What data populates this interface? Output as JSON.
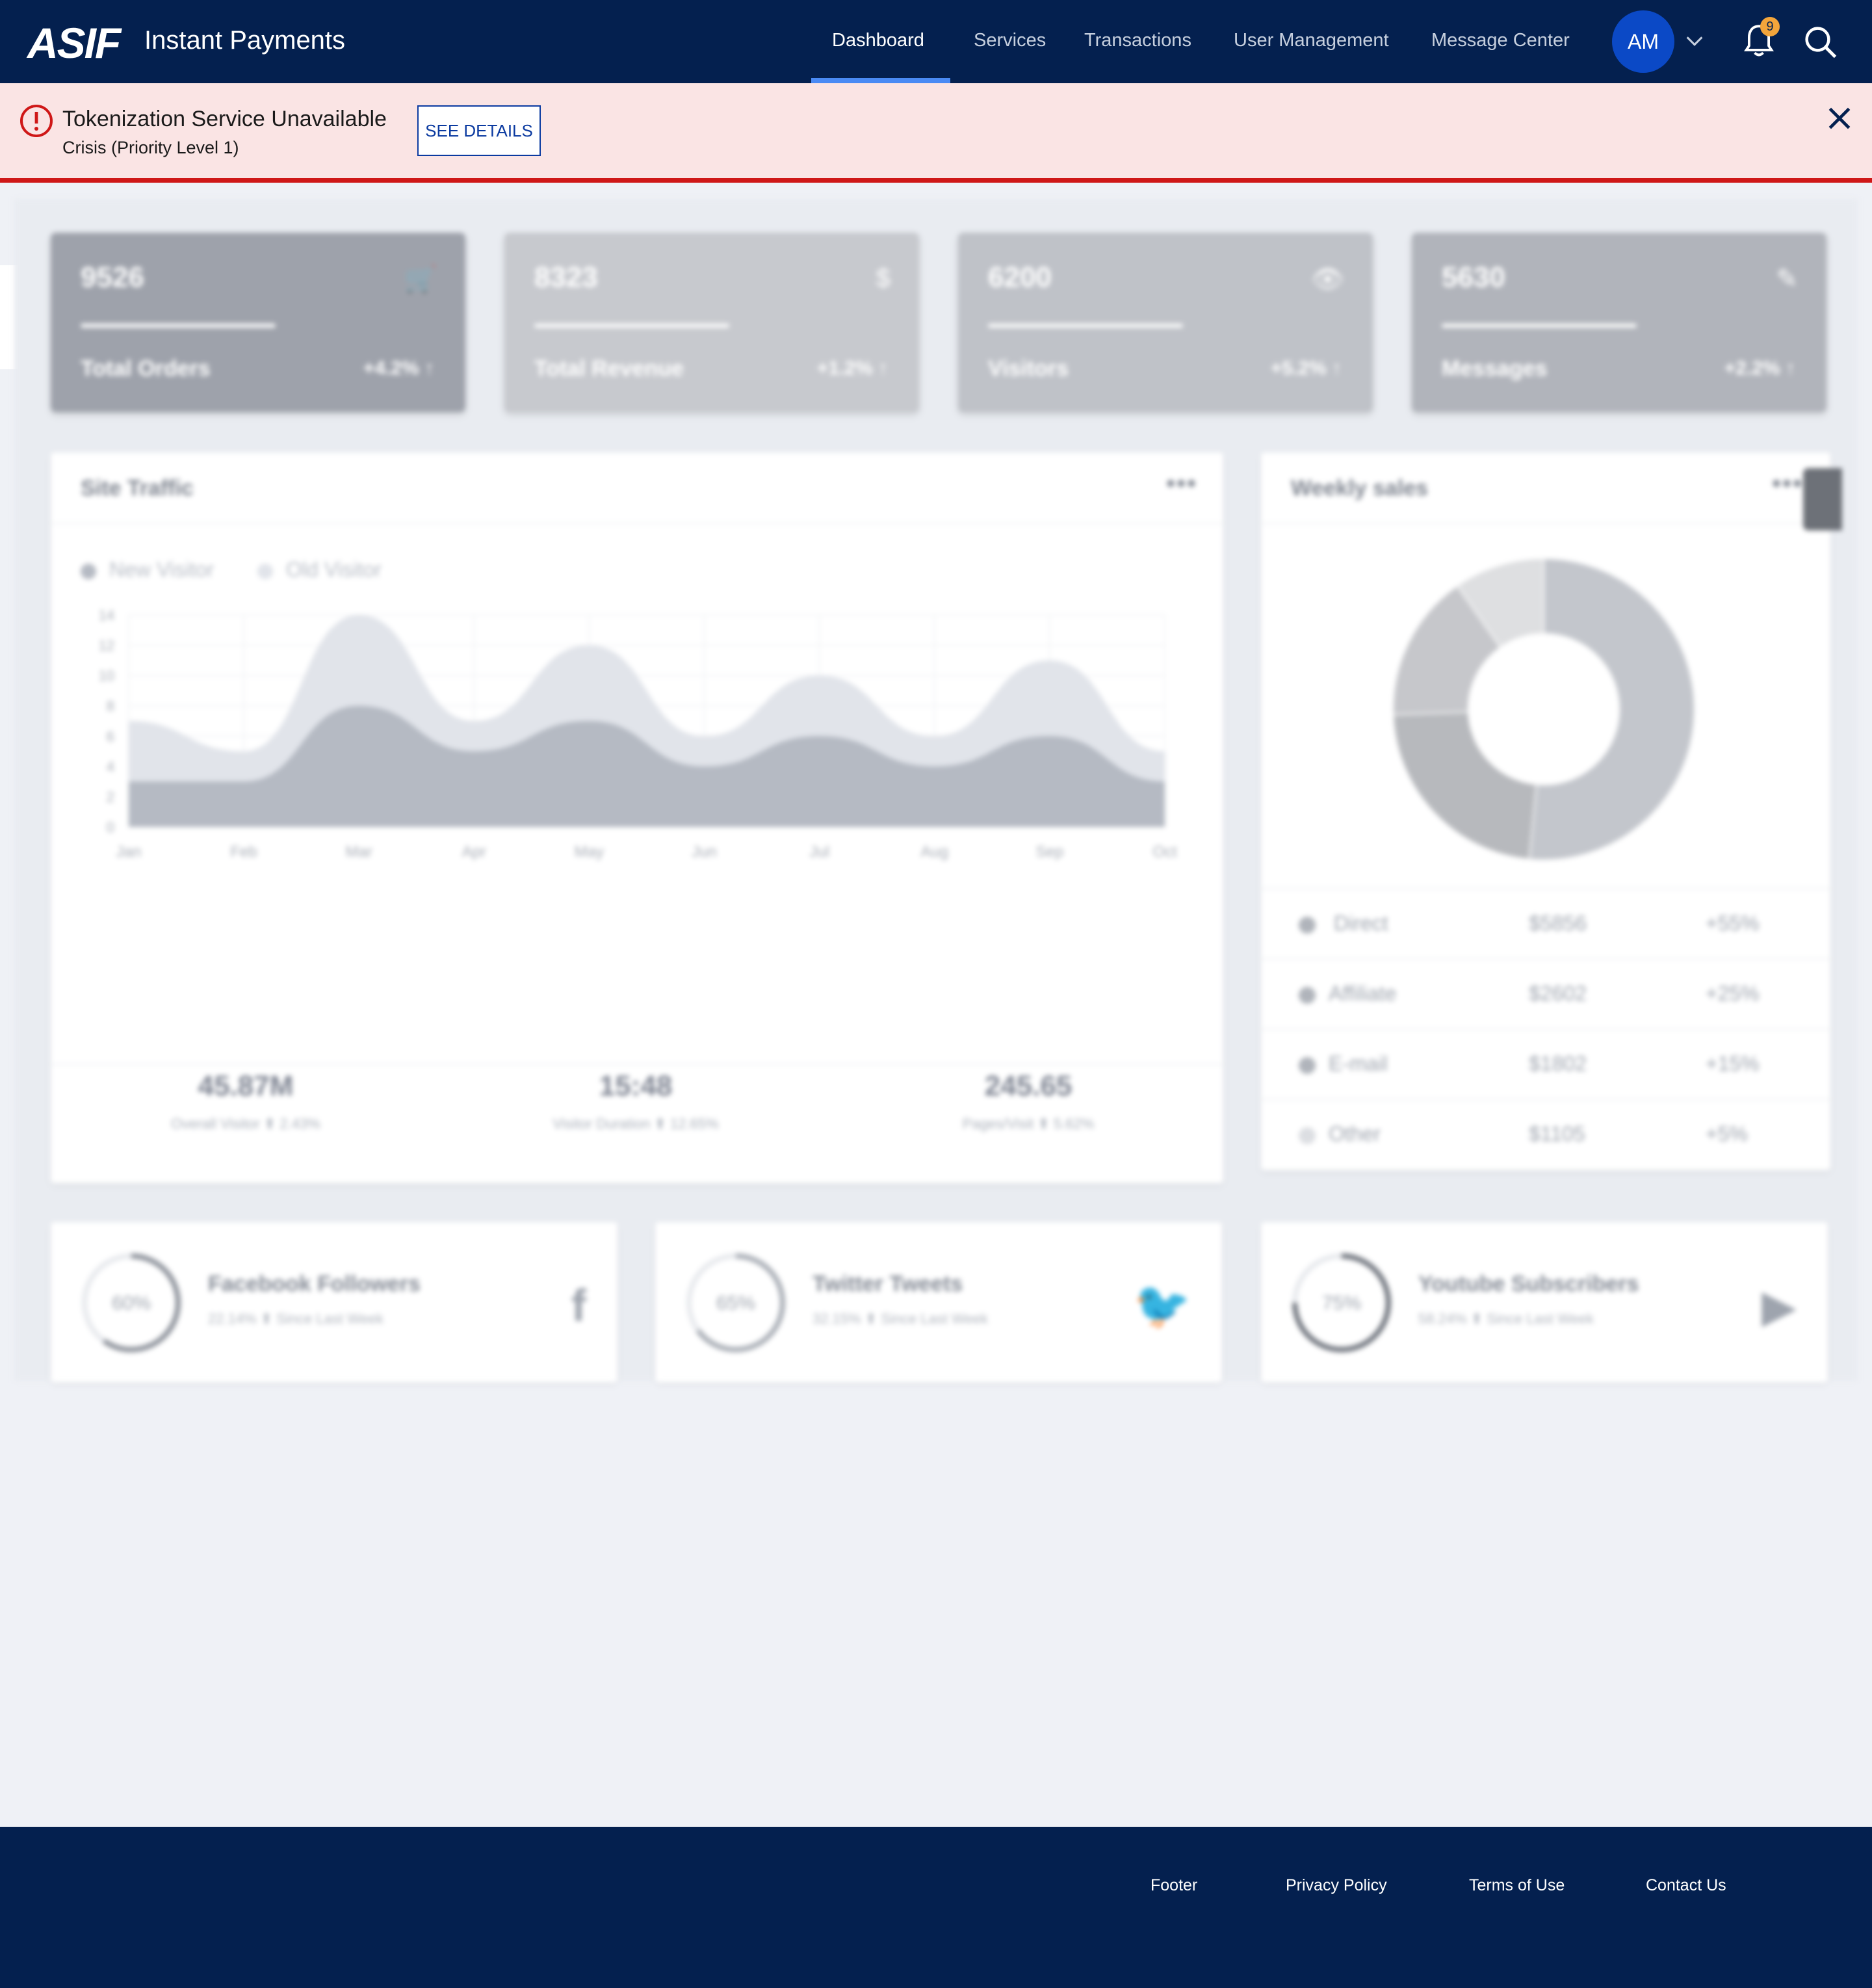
{
  "header": {
    "logo": "ASIF",
    "title": "Instant Payments",
    "nav": [
      {
        "label": "Dashboard",
        "active": true
      },
      {
        "label": "Services"
      },
      {
        "label": "Transactions"
      },
      {
        "label": "User Management"
      },
      {
        "label": "Message Center"
      }
    ],
    "avatar_initials": "AM",
    "notification_count": "9",
    "icons": [
      "chevron-down-icon",
      "bell-icon",
      "search-icon"
    ]
  },
  "alert": {
    "title": "Tokenization Service Unavailable",
    "subtitle": "Crisis (Priority Level 1)",
    "button": "SEE DETAILS",
    "icons": [
      "alert-circle-icon",
      "close-icon"
    ],
    "color": "#cf1717"
  },
  "dashboard": {
    "stats": [
      {
        "value": "9526",
        "label": "Total Orders",
        "change": "+4.2% ↑",
        "icon": "cart-icon",
        "progress": 0.5
      },
      {
        "value": "8323",
        "label": "Total Revenue",
        "change": "+1.2% ↑",
        "icon": "dollar-icon",
        "progress": 0.5
      },
      {
        "value": "6200",
        "label": "Visitors",
        "change": "+5.2% ↑",
        "icon": "eye-icon",
        "progress": 0.5
      },
      {
        "value": "5630",
        "label": "Messages",
        "change": "+2.2% ↑",
        "icon": "tag-icon",
        "progress": 0.5
      }
    ],
    "traffic": {
      "title": "Site Traffic",
      "menu": "•••",
      "legend": [
        "New Visitor",
        "Old Visitor"
      ],
      "metrics": [
        {
          "value": "45.87M",
          "caption": "Overall Visitor ⬆ 2.43%"
        },
        {
          "value": "15:48",
          "caption": "Visitor Duration ⬆ 12.65%"
        },
        {
          "value": "245.65",
          "caption": "Pages/Visit ⬆ 5.62%"
        }
      ]
    },
    "sales": {
      "title": "Weekly sales",
      "menu": "•••",
      "rows": [
        {
          "name": "Direct",
          "amount": "$5856",
          "change": "+55%"
        },
        {
          "name": "Affiliate",
          "amount": "$2602",
          "change": "+25%"
        },
        {
          "name": "E-mail",
          "amount": "$1802",
          "change": "+15%"
        },
        {
          "name": "Other",
          "amount": "$1105",
          "change": "+5%"
        }
      ]
    },
    "social": [
      {
        "percent": "60%",
        "title": "Facebook Followers",
        "sub": "22.14% ⬆ Since Last Week",
        "icon": "f"
      },
      {
        "percent": "65%",
        "title": "Twitter Tweets",
        "sub": "32.15% ⬆ Since Last Week",
        "icon": "🐦"
      },
      {
        "percent": "75%",
        "title": "Youtube Subscribers",
        "sub": "58.24% ⬆ Since Last Week",
        "icon": "▶"
      }
    ]
  },
  "chart_data": [
    {
      "type": "area",
      "title": "Site Traffic",
      "categories": [
        "Jan",
        "Feb",
        "Mar",
        "Apr",
        "May",
        "Jun",
        "Jul",
        "Aug",
        "Sep",
        "Oct"
      ],
      "ylim": [
        0,
        14
      ],
      "yticks": [
        0,
        2,
        4,
        6,
        8,
        10,
        12,
        14
      ],
      "series": [
        {
          "name": "New Visitor",
          "values": [
            3,
            3,
            8,
            5,
            7,
            4,
            6,
            4,
            6,
            3
          ],
          "color": "#b5bac3"
        },
        {
          "name": "Old Visitor",
          "values": [
            7,
            5,
            14,
            7,
            12,
            6,
            10,
            6,
            11,
            5
          ],
          "color": "#e1e4ea"
        }
      ],
      "grid": true,
      "legend": "top-left"
    },
    {
      "type": "pie",
      "title": "Weekly sales",
      "labels": [
        "Direct",
        "Affiliate",
        "E-mail",
        "Other"
      ],
      "values": [
        5856,
        2602,
        1802,
        1105
      ],
      "colors": [
        "#c3c6cc",
        "#b7b9bd",
        "#c6c7cb",
        "#dedfe1"
      ]
    }
  ],
  "footer": {
    "links": [
      "Footer",
      "Privacy Policy",
      "Terms of Use",
      "Contact Us"
    ]
  }
}
